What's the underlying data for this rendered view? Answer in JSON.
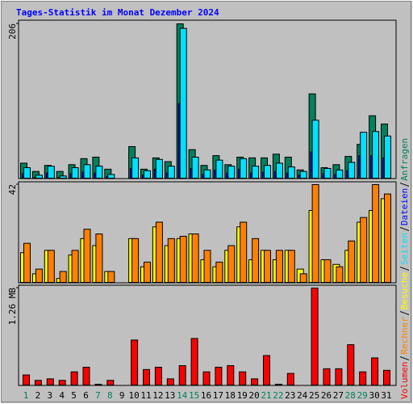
{
  "chart_data": [
    {
      "type": "bar",
      "title": "Tages-Statistik im Monat Dezember 2024",
      "ylim": [
        0,
        206
      ],
      "yticks": [
        206
      ],
      "series": [
        {
          "name": "Anfragen",
          "color": "#00805c",
          "values": [
            21,
            10,
            18,
            10,
            19,
            27,
            29,
            13,
            0,
            43,
            13,
            28,
            23,
            206,
            39,
            18,
            31,
            19,
            29,
            28,
            28,
            33,
            29,
            12,
            113,
            15,
            19,
            30,
            46,
            84,
            73
          ]
        },
        {
          "name": "Dateien",
          "color": "#0000ff",
          "values": [
            7,
            2,
            8,
            2,
            7,
            9,
            8,
            3,
            0,
            14,
            5,
            13,
            8,
            100,
            14,
            6,
            12,
            8,
            13,
            8,
            9,
            10,
            8,
            5,
            36,
            7,
            6,
            11,
            31,
            31,
            28
          ]
        },
        {
          "name": "Seiten",
          "color": "#00e0ff",
          "values": [
            15,
            5,
            17,
            4,
            15,
            19,
            17,
            6,
            0,
            28,
            11,
            26,
            17,
            200,
            29,
            12,
            25,
            17,
            27,
            17,
            18,
            21,
            16,
            10,
            78,
            14,
            12,
            22,
            62,
            63,
            57
          ]
        }
      ]
    },
    {
      "type": "bar",
      "ylim": [
        0,
        42
      ],
      "yticks": [
        42
      ],
      "series": [
        {
          "name": "Besuche",
          "color": "#ffff00",
          "values": [
            13,
            4,
            14,
            2,
            12,
            19,
            16,
            5,
            0,
            19,
            7,
            24,
            16,
            19,
            21,
            10,
            7,
            14,
            24,
            10,
            14,
            10,
            14,
            6,
            31,
            10,
            8,
            14,
            26,
            31,
            36
          ]
        },
        {
          "name": "Rechner",
          "color": "#ff8000",
          "values": [
            17,
            6,
            14,
            5,
            14,
            23,
            21,
            5,
            0,
            19,
            9,
            26,
            19,
            20,
            21,
            14,
            9,
            16,
            26,
            19,
            14,
            14,
            14,
            4,
            42,
            10,
            7,
            18,
            28,
            42,
            38
          ]
        }
      ]
    },
    {
      "type": "bar",
      "ylim": [
        0,
        1.26
      ],
      "yticks": [
        {
          "value": 1.26,
          "label": "1.26 MB"
        }
      ],
      "categories": [
        "1",
        "2",
        "3",
        "4",
        "5",
        "6",
        "7",
        "8",
        "9",
        "10",
        "11",
        "12",
        "13",
        "14",
        "15",
        "16",
        "17",
        "18",
        "19",
        "20",
        "21",
        "22",
        "23",
        "24",
        "25",
        "26",
        "27",
        "28",
        "29",
        "30",
        "31"
      ],
      "weekend_indices": [
        0,
        6,
        7,
        13,
        14,
        20,
        21,
        27,
        28
      ],
      "weekend_color": "#00805c",
      "series": [
        {
          "name": "Volumen",
          "color": "#ff0000",
          "values": [
            0.14,
            0.07,
            0.09,
            0.07,
            0.18,
            0.24,
            0.02,
            0.07,
            0,
            0.59,
            0.21,
            0.24,
            0.09,
            0.26,
            0.61,
            0.18,
            0.24,
            0.26,
            0.18,
            0.09,
            0.39,
            0.02,
            0.16,
            0,
            1.26,
            0.22,
            0.22,
            0.53,
            0.18,
            0.36,
            0.2
          ]
        }
      ]
    }
  ]
}
